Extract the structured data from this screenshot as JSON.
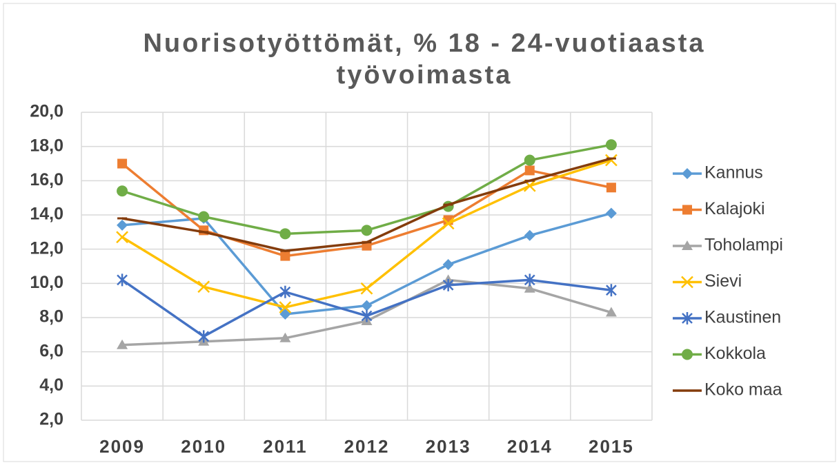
{
  "chart_data": {
    "type": "line",
    "title": "Nuorisotyöttömät, % 18 - 24-vuotiaasta työvoimasta",
    "categories": [
      "2009",
      "2010",
      "2011",
      "2012",
      "2013",
      "2014",
      "2015"
    ],
    "series": [
      {
        "name": "Kannus",
        "color": "#5b9bd5",
        "marker": "diamond",
        "values": [
          13.4,
          13.8,
          8.2,
          8.7,
          11.1,
          12.8,
          14.1
        ]
      },
      {
        "name": "Kalajoki",
        "color": "#ed7d31",
        "marker": "square",
        "values": [
          17.0,
          13.1,
          11.6,
          12.2,
          13.7,
          16.6,
          15.6
        ]
      },
      {
        "name": "Toholampi",
        "color": "#a5a5a5",
        "marker": "triangle",
        "values": [
          6.4,
          6.6,
          6.8,
          7.8,
          10.2,
          9.7,
          8.3
        ]
      },
      {
        "name": "Sievi",
        "color": "#ffc000",
        "marker": "x",
        "values": [
          12.7,
          9.8,
          8.6,
          9.7,
          13.5,
          15.7,
          17.2
        ]
      },
      {
        "name": "Kaustinen",
        "color": "#4472c4",
        "marker": "star",
        "values": [
          10.2,
          6.9,
          9.5,
          8.1,
          9.9,
          10.2,
          9.6
        ]
      },
      {
        "name": "Kokkola",
        "color": "#70ad47",
        "marker": "circle",
        "values": [
          15.4,
          13.9,
          12.9,
          13.1,
          14.5,
          17.2,
          18.1
        ]
      },
      {
        "name": "Koko maa",
        "color": "#843c0c",
        "marker": "dash",
        "values": [
          13.8,
          13.0,
          11.9,
          12.4,
          14.6,
          16.0,
          17.3
        ]
      }
    ],
    "ylim": [
      2,
      20
    ],
    "yticks": [
      {
        "value": 2,
        "label": "2,0"
      },
      {
        "value": 4,
        "label": "4,0"
      },
      {
        "value": 6,
        "label": "6,0"
      },
      {
        "value": 8,
        "label": "8,0"
      },
      {
        "value": 10,
        "label": "10,0"
      },
      {
        "value": 12,
        "label": "12,0"
      },
      {
        "value": 14,
        "label": "14,0"
      },
      {
        "value": 16,
        "label": "16,0"
      },
      {
        "value": 18,
        "label": "18,0"
      },
      {
        "value": 20,
        "label": "20,0"
      }
    ],
    "grid": true,
    "legend": "right"
  }
}
